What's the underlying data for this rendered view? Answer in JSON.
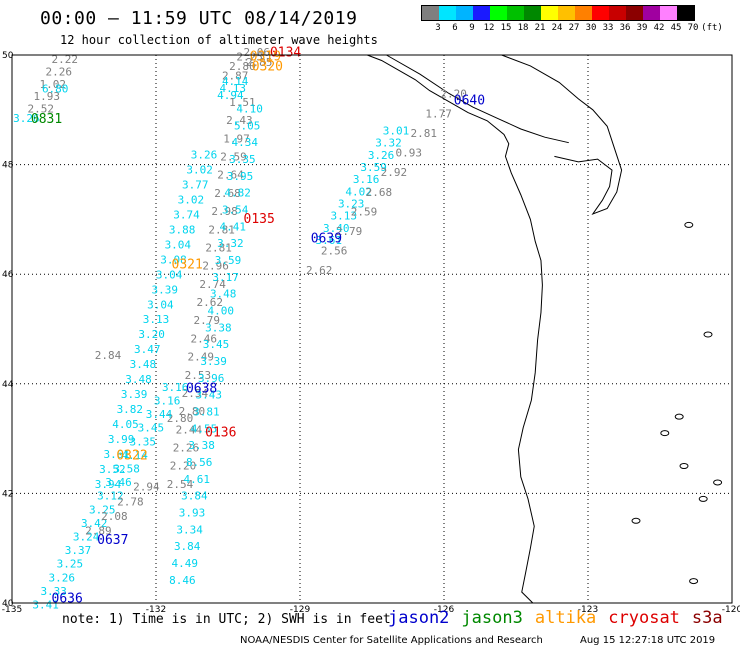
{
  "title": "00:00 – 11:59 UTC 08/14/2019",
  "subtitle": "12 hour collection of altimeter wave heights",
  "legend": {
    "colors": [
      "#7f7f7f",
      "#00e5ff",
      "#00b4ff",
      "#1a1aff",
      "#00ff00",
      "#00c000",
      "#008800",
      "#ffff00",
      "#ffc000",
      "#ff8000",
      "#ff0000",
      "#c80000",
      "#8b0000",
      "#a000a0",
      "#ff80ff",
      "#000000"
    ],
    "labels": [
      "3",
      "6",
      "9",
      "12",
      "15",
      "18",
      "21",
      "24",
      "27",
      "30",
      "33",
      "36",
      "39",
      "42",
      "45",
      "70",
      "(ft)"
    ]
  },
  "axes": {
    "lon_ticks": [
      "-135",
      "-132",
      "-129",
      "-126",
      "-123",
      "-120"
    ],
    "lat_ticks": [
      "50",
      "48",
      "46",
      "44",
      "42",
      "40"
    ]
  },
  "time_labels": [
    {
      "text": "0134",
      "color": "#dd0000",
      "lon": -129.3,
      "lat": 49.97
    },
    {
      "text": "0319",
      "color": "#ff9900",
      "lon": -129.72,
      "lat": 49.9
    },
    {
      "text": "0320",
      "color": "#ff9900",
      "lon": -129.68,
      "lat": 49.72
    },
    {
      "text": "0640",
      "color": "#0000cc",
      "lon": -125.47,
      "lat": 49.1
    },
    {
      "text": "0831",
      "color": "#008800",
      "lon": -134.28,
      "lat": 48.76
    },
    {
      "text": "0135",
      "color": "#dd0000",
      "lon": -129.85,
      "lat": 46.93
    },
    {
      "text": "0639",
      "color": "#0000cc",
      "lon": -128.45,
      "lat": 46.58
    },
    {
      "text": "0321",
      "color": "#ff9900",
      "lon": -131.35,
      "lat": 46.1
    },
    {
      "text": "0638",
      "color": "#0000cc",
      "lon": -131.05,
      "lat": 43.84
    },
    {
      "text": "0136",
      "color": "#dd0000",
      "lon": -130.65,
      "lat": 43.04
    },
    {
      "text": "0322",
      "color": "#ff9900",
      "lon": -132.5,
      "lat": 42.62
    },
    {
      "text": "0637",
      "color": "#0000cc",
      "lon": -132.9,
      "lat": 41.08
    },
    {
      "text": "0636",
      "color": "#0000cc",
      "lon": -133.85,
      "lat": 40.01
    }
  ],
  "tracks": {
    "altika_north": {
      "color": "#7f7f7f",
      "lon0": -130.05,
      "lat0": 49.9,
      "lon1": -130.35,
      "lat1": 49.55,
      "values": [
        "2.25",
        "2.80",
        "2.87"
      ]
    },
    "altika_north2": {
      "color": "#7f7f7f",
      "lon0": -129.9,
      "lat0": 49.98,
      "lon1": -129.85,
      "lat1": 49.8,
      "values": [
        "2.06",
        "2.85"
      ]
    },
    "altika_north_cy": {
      "color": "#00d4ee",
      "lon0": -130.35,
      "lat0": 49.45,
      "lon1": -130.45,
      "lat1": 49.2,
      "values": [
        "4.14",
        "4.13",
        "4.94"
      ]
    },
    "cryosat": {
      "color": "#7f7f7f",
      "lon0": -130.2,
      "lat0": 49.07,
      "lon1": -131.5,
      "lat1": 42.1,
      "values": [
        "1.51",
        "2.43",
        "1.97",
        "2.59",
        "2.64",
        "2.68",
        "2.98",
        "2.81",
        "2.81",
        "2.96",
        "2.74",
        "2.62",
        "2.79",
        "2.46",
        "2.49",
        "2.53",
        "2.54",
        "2.80",
        "2.44",
        "2.26",
        "2.20",
        "2.54"
      ]
    },
    "sentinel": {
      "color": "#00d4ee",
      "lon0": -130.05,
      "lat0": 48.95,
      "lon1": -131.45,
      "lat1": 40.35,
      "values": [
        "4.10",
        "5.05",
        "4.34",
        "3.35",
        "3.95",
        "4.82",
        "3.54",
        "4.41",
        "3.32",
        "3.59",
        "3.17",
        "3.48",
        "4.00",
        "3.38",
        "3.45",
        "3.39",
        "3.96",
        "3.43",
        "3.81",
        "4.55",
        "3.38",
        "8.56",
        "4.61",
        "3.84",
        "3.93",
        "3.34",
        "3.84",
        "4.49",
        "8.46"
      ]
    },
    "altika_mid": {
      "color": "#00d4ee",
      "lon0": -131.0,
      "lat0": 48.11,
      "lon1": -133.0,
      "lat1": 42.1,
      "values": [
        "3.26",
        "3.02",
        "3.77",
        "3.02",
        "3.74",
        "3.88",
        "3.04",
        "3.08",
        "3.04",
        "3.39",
        "3.04",
        "3.13",
        "3.20",
        "3.47",
        "3.48",
        "3.48",
        "3.39",
        "3.82",
        "4.05",
        "3.99",
        "3.61",
        "3.52",
        "3.94"
      ]
    },
    "altika_mid_grey": {
      "color": "#7f7f7f",
      "lon0": -133.0,
      "lat0": 44.45,
      "lon1": -131.5,
      "lat1": 43.3,
      "values": [
        "2.84",
        "2.80"
      ]
    },
    "jason2_ne": {
      "color": "#00d4ee",
      "lon0": -127.0,
      "lat0": 48.55,
      "lon1": -128.4,
      "lat1": 46.55,
      "values": [
        "3.01",
        "3.32",
        "3.26",
        "3.59",
        "3.16",
        "4.02",
        "3.23",
        "3.13",
        "3.40",
        "3.61"
      ]
    },
    "jason2_ne_grey": {
      "color": "#7f7f7f",
      "lon0": -125.8,
      "lat0": 49.22,
      "lon1": -128.6,
      "lat1": 46.0,
      "values": [
        "2.20",
        "1.77",
        "2.81",
        "0.93",
        "2.92",
        "2.68",
        "2.59",
        "2.79",
        "2.56",
        "2.62"
      ]
    },
    "jason2_sw": {
      "color": "#00d4ee",
      "lon0": -131.6,
      "lat0": 43.87,
      "lon1": -134.3,
      "lat1": 39.9,
      "values": [
        "3.16",
        "3.16",
        "3.44",
        "3.45",
        "3.35",
        "4.14",
        "3.58",
        "3.46",
        "3.12",
        "3.25",
        "3.42",
        "3.24",
        "3.37",
        "3.25",
        "3.26",
        "3.33",
        "3.41"
      ]
    },
    "jason2_sw_grey": {
      "color": "#7f7f7f",
      "lon0": -132.2,
      "lat0": 42.05,
      "lon1": -133.2,
      "lat1": 41.25,
      "values": [
        "2.94",
        "2.78",
        "2.08",
        "2.89"
      ]
    },
    "jason3": {
      "color": "#7f7f7f",
      "lon0": -133.9,
      "lat0": 49.85,
      "lon1": -134.4,
      "lat1": 48.95,
      "values": [
        "2.22",
        "2.26",
        "1.02",
        "1.93",
        "2.52"
      ]
    },
    "jason3_cy": {
      "color": "#00d4ee",
      "lon0": -134.1,
      "lat0": 49.32,
      "lon1": -134.7,
      "lat1": 48.78,
      "values": [
        "6.80",
        "3.26"
      ]
    }
  },
  "footer_note": "note: 1) Time is in UTC; 2) SWH is in feet",
  "satellites": [
    {
      "name": "jason2",
      "color": "#0000cc"
    },
    {
      "name": "jason3",
      "color": "#008800"
    },
    {
      "name": "altika",
      "color": "#ff9900"
    },
    {
      "name": "cryosat",
      "color": "#dd0000"
    },
    {
      "name": "s3a",
      "color": "#8b0000"
    }
  ],
  "credit": "NOAA/NESDIS Center for Satellite Applications and Research",
  "generated": "Aug 15 12:27:18 UTC 2019"
}
